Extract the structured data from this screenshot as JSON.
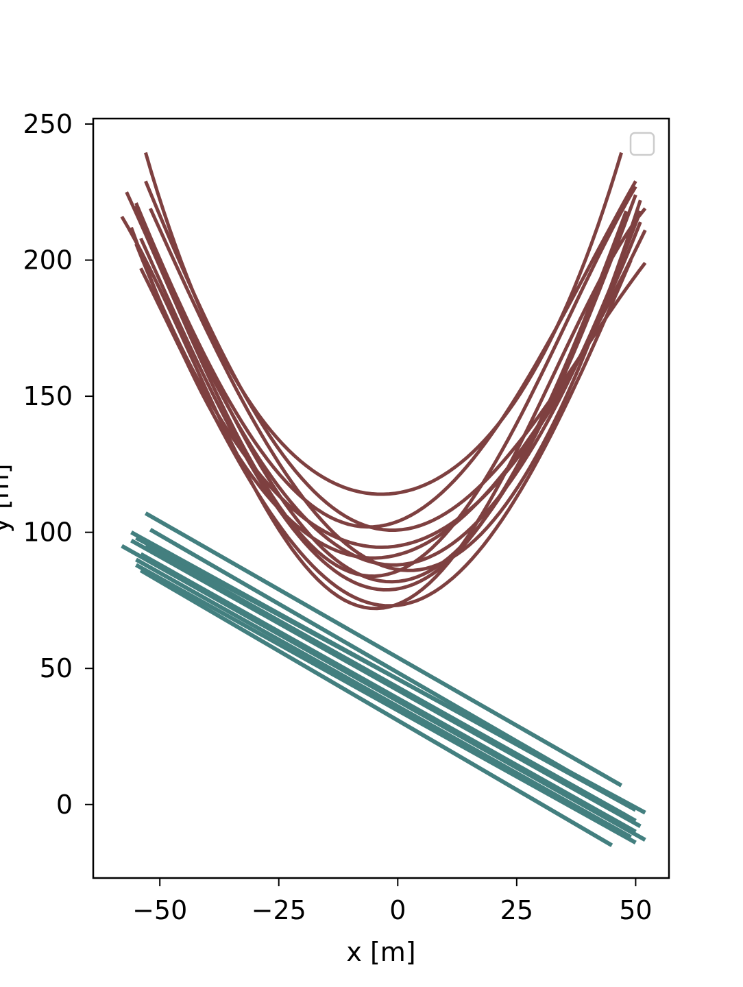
{
  "chart_data": {
    "type": "line",
    "title": "",
    "xlabel": "x [m]",
    "ylabel": "y [m]",
    "xlim": [
      -64,
      57
    ],
    "ylim": [
      -27,
      252
    ],
    "xticks": [
      -50,
      -25,
      0,
      25,
      50
    ],
    "xtick_labels": [
      "−50",
      "−25",
      "0",
      "25",
      "50"
    ],
    "yticks": [
      0,
      50,
      100,
      150,
      200,
      250
    ],
    "ytick_labels": [
      "0",
      "50",
      "100",
      "150",
      "200",
      "250"
    ],
    "grid": false,
    "legend": {
      "placement": "top-right",
      "entries": []
    },
    "colors": {
      "curves": "#7e4040",
      "lines": "#437f7f"
    },
    "series": [
      {
        "kind": "parabola",
        "x": [
          -53,
          -30,
          -3,
          25,
          47
        ],
        "y": [
          239.5,
          145,
          114,
          149,
          239.5
        ]
      },
      {
        "kind": "parabola",
        "x": [
          -58,
          -35,
          -5,
          25,
          52
        ],
        "y": [
          216,
          133,
          72,
          130,
          219
        ]
      },
      {
        "kind": "parabola",
        "x": [
          -57,
          -35,
          -4,
          25,
          50
        ],
        "y": [
          225,
          140,
          84,
          140,
          227
        ]
      },
      {
        "kind": "parabola",
        "x": [
          -55,
          -35,
          0,
          25,
          50
        ],
        "y": [
          221,
          147,
          104,
          150,
          229
        ]
      },
      {
        "kind": "parabola",
        "x": [
          -54,
          -30,
          -1,
          25,
          48
        ],
        "y": [
          208,
          122,
          79,
          124,
          218
        ]
      },
      {
        "kind": "parabola",
        "x": [
          -56,
          -35,
          -2,
          25,
          52
        ],
        "y": [
          212,
          132,
          91,
          128,
          211
        ]
      },
      {
        "kind": "parabola",
        "x": [
          -52,
          -30,
          2,
          25,
          51
        ],
        "y": [
          219,
          140,
          86,
          116,
          222
        ]
      },
      {
        "kind": "parabola",
        "x": [
          -54,
          -30,
          -2,
          25,
          49
        ],
        "y": [
          197,
          116,
          73,
          113,
          200
        ]
      },
      {
        "kind": "parabola",
        "x": [
          -55,
          -32,
          0,
          25,
          51
        ],
        "y": [
          206,
          128,
          95,
          127,
          214
        ]
      },
      {
        "kind": "parabola",
        "x": [
          -53,
          -30,
          1,
          25,
          52
        ],
        "y": [
          229,
          144,
          101,
          132,
          199
        ]
      },
      {
        "kind": "parabola",
        "x": [
          -55,
          -30,
          -3,
          25,
          50
        ],
        "y": [
          220,
          128,
          82,
          123,
          224
        ]
      },
      {
        "kind": "parabola",
        "x": [
          -54,
          -32,
          -1,
          25,
          51
        ],
        "y": [
          215,
          135,
          88,
          122,
          218
        ]
      },
      {
        "kind": "line",
        "x": [
          -53,
          47
        ],
        "y": [
          107,
          7
        ]
      },
      {
        "kind": "line",
        "x": [
          -58,
          52
        ],
        "y": [
          95,
          -13
        ]
      },
      {
        "kind": "line",
        "x": [
          -56,
          50
        ],
        "y": [
          100,
          -2
        ]
      },
      {
        "kind": "line",
        "x": [
          -54,
          45
        ],
        "y": [
          86,
          -15
        ]
      },
      {
        "kind": "line",
        "x": [
          -55,
          52
        ],
        "y": [
          98,
          -3
        ]
      },
      {
        "kind": "line",
        "x": [
          -52,
          48
        ],
        "y": [
          101,
          0
        ]
      },
      {
        "kind": "line",
        "x": [
          -54,
          50
        ],
        "y": [
          92,
          -10
        ]
      },
      {
        "kind": "line",
        "x": [
          -55,
          49
        ],
        "y": [
          90,
          -12
        ]
      },
      {
        "kind": "line",
        "x": [
          -53,
          50
        ],
        "y": [
          95,
          -6
        ]
      },
      {
        "kind": "line",
        "x": [
          -56,
          51
        ],
        "y": [
          97,
          -8
        ]
      },
      {
        "kind": "line",
        "x": [
          -52,
          48
        ],
        "y": [
          94,
          -4
        ]
      },
      {
        "kind": "line",
        "x": [
          -55,
          50
        ],
        "y": [
          88,
          -14
        ]
      }
    ]
  }
}
